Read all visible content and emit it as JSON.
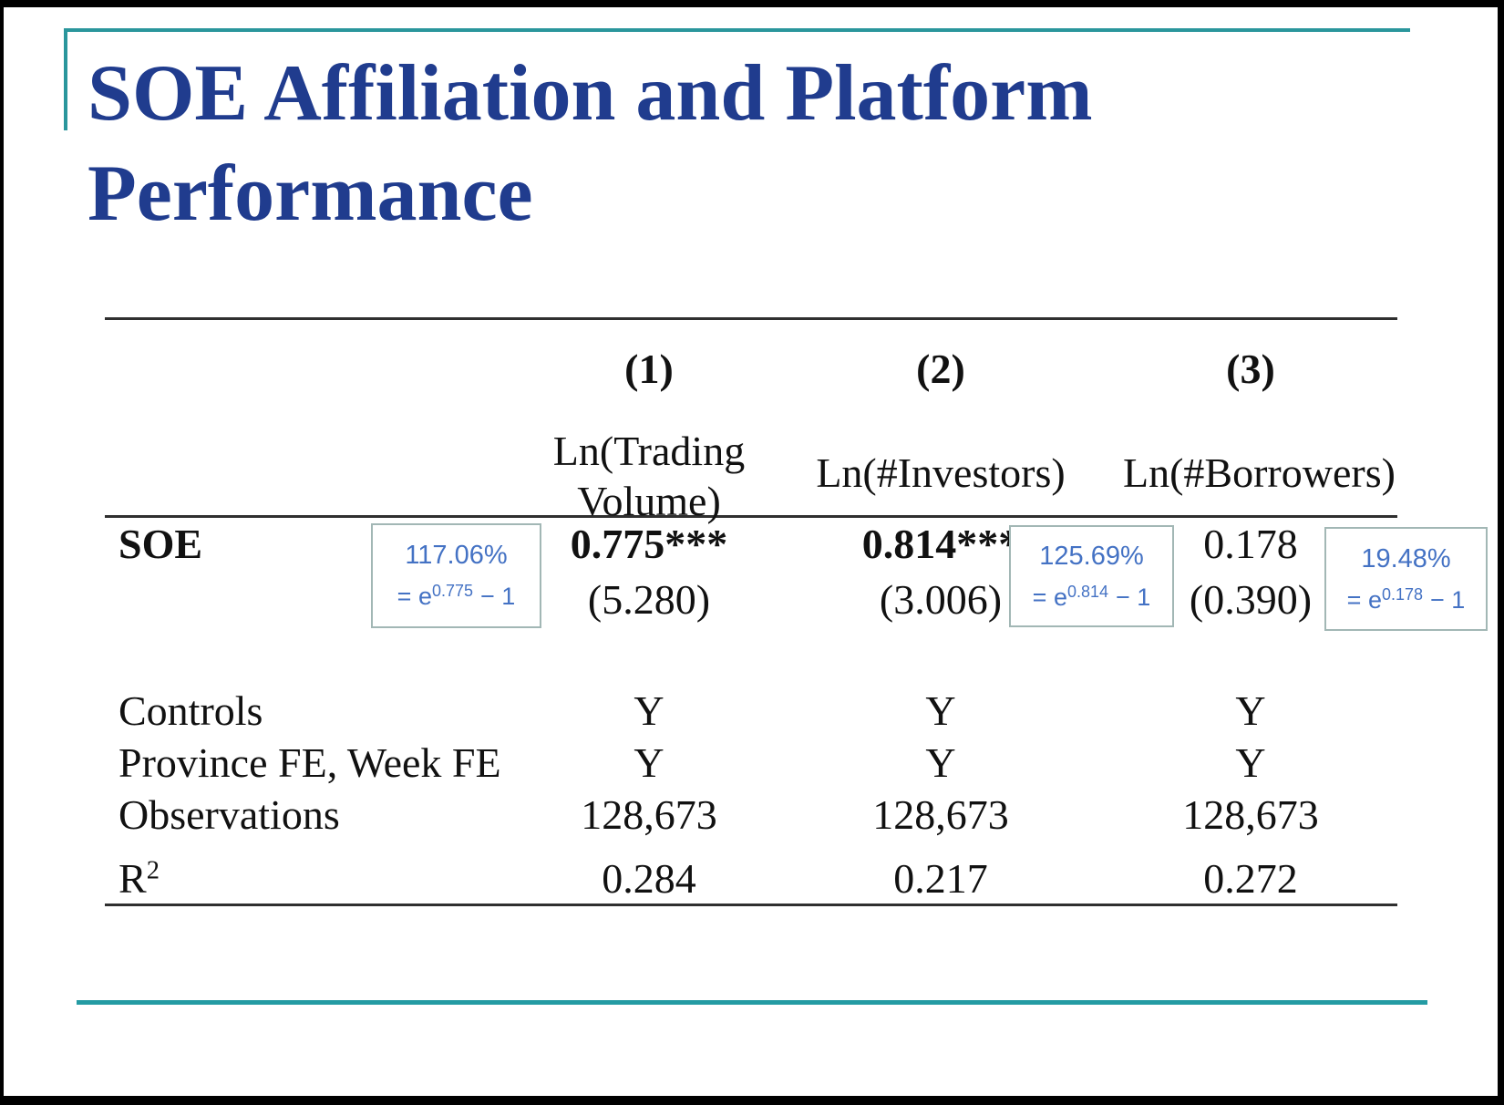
{
  "slide": {
    "title": {
      "line1": "SOE Affiliation and Platform",
      "line2": "Performance"
    }
  },
  "table": {
    "column_numbers": [
      "(1)",
      "(2)",
      "(3)"
    ],
    "dep_vars": [
      "Ln(Trading Volume)",
      "Ln(#Investors)",
      "Ln(#Borrowers)"
    ],
    "soe": {
      "label": "SOE",
      "coefs": [
        "0.775***",
        "0.814***",
        "0.178"
      ],
      "tstats": [
        "(5.280)",
        "(3.006)",
        "(0.390)"
      ]
    },
    "controls": {
      "label": "Controls",
      "values": [
        "Y",
        "Y",
        "Y"
      ]
    },
    "fixed_effects": {
      "label": "Province FE, Week FE",
      "values": [
        "Y",
        "Y",
        "Y"
      ]
    },
    "observations": {
      "label": "Observations",
      "values": [
        "128,673",
        "128,673",
        "128,673"
      ]
    },
    "r_squared": {
      "label_base": "R",
      "label_sup": "2",
      "values": [
        "0.284",
        "0.217",
        "0.272"
      ]
    }
  },
  "annotations": [
    {
      "percent": "117.06%",
      "eq_prefix": "= e",
      "exponent": "0.775",
      "eq_suffix": "− 1"
    },
    {
      "percent": "125.69%",
      "eq_prefix": "= e",
      "exponent": "0.814",
      "eq_suffix": "− 1"
    },
    {
      "percent": "19.48%",
      "eq_prefix": "= e",
      "exponent": "0.178",
      "eq_suffix": "− 1"
    }
  ],
  "colors": {
    "title_navy": "#203c8e",
    "accent_teal": "#2a969c",
    "annotation_blue": "#4472c4",
    "annotation_border": "#a2b7b5",
    "table_rule": "#2f2f2f",
    "frame_black": "#000000",
    "background": "#ffffff"
  }
}
